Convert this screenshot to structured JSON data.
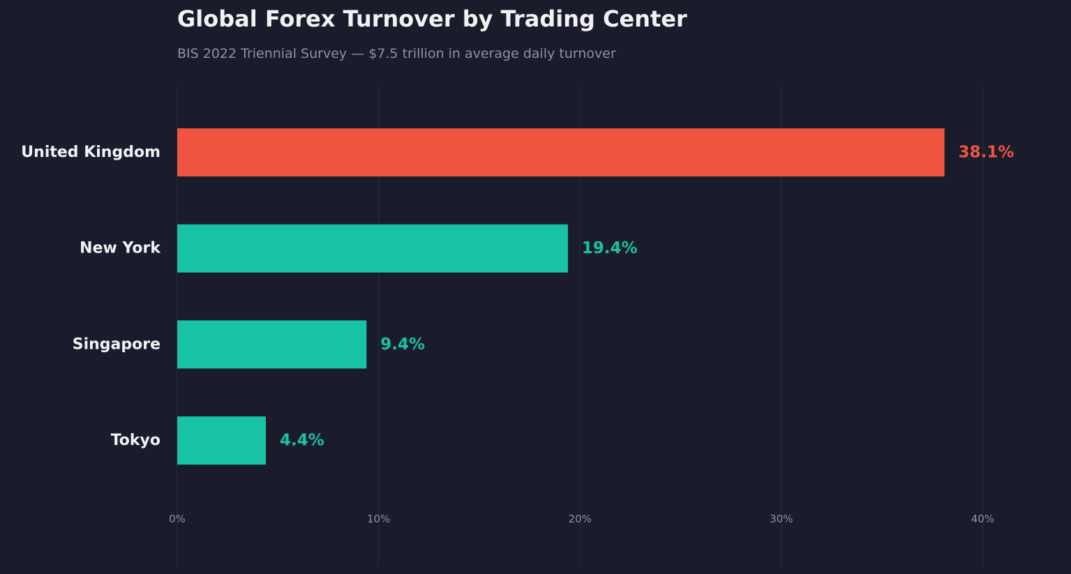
{
  "colors": {
    "background": "#1a1c2c",
    "highlight": "#ef5540",
    "default": "#19c3a6",
    "grid": "#2a2d40",
    "text": "#f2f2f5",
    "muted": "#8d90ab"
  },
  "chart_data": {
    "type": "bar",
    "orientation": "horizontal",
    "title": "Global Forex Turnover by Trading Center",
    "subtitle": "BIS 2022 Triennial Survey — $7.5 trillion in average daily turnover",
    "categories": [
      "United Kingdom",
      "New York",
      "Singapore",
      "Tokyo"
    ],
    "values": [
      38.1,
      19.4,
      9.4,
      4.4
    ],
    "value_labels": [
      "38.1%",
      "19.4%",
      "9.4%",
      "4.4%"
    ],
    "highlight_index": 0,
    "xlim": [
      0,
      44
    ],
    "xticks": [
      0,
      10,
      20,
      30,
      40
    ],
    "xtick_labels": [
      "0%",
      "10%",
      "20%",
      "30%",
      "40%"
    ],
    "xlabel": "",
    "ylabel": "",
    "grid": "vertical",
    "legend": "none"
  }
}
